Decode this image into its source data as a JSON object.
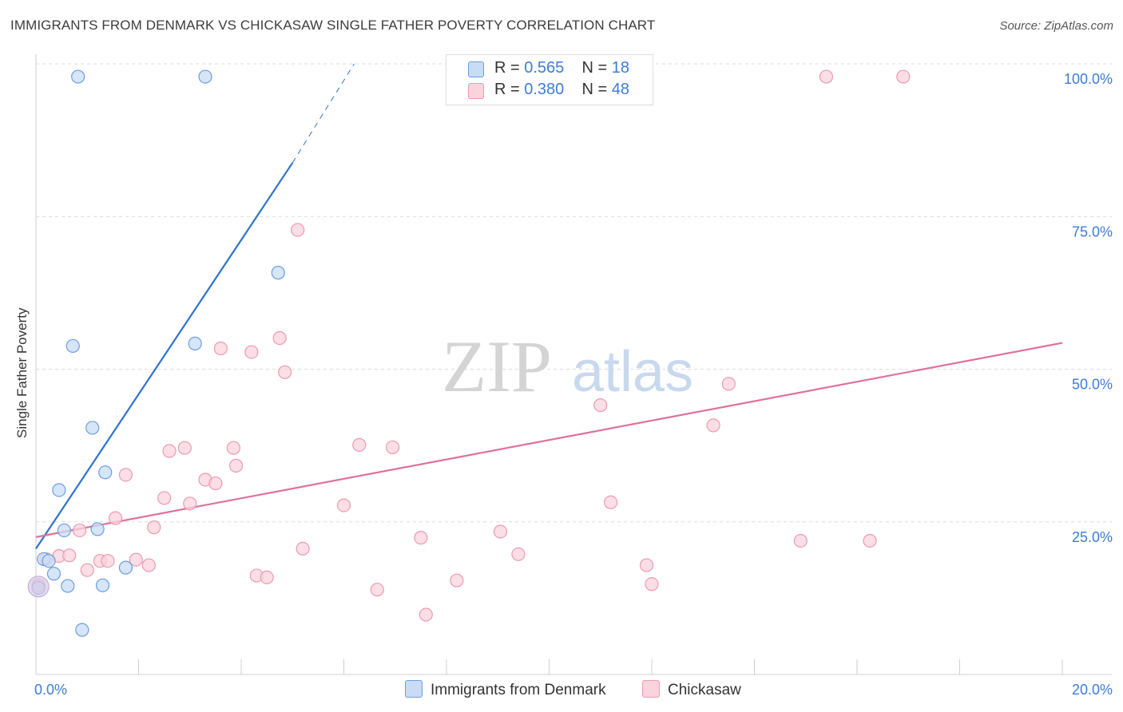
{
  "title": "IMMIGRANTS FROM DENMARK VS CHICKASAW SINGLE FATHER POVERTY CORRELATION CHART",
  "source": "Source: ZipAtlas.com",
  "watermark": {
    "zip": "ZIP",
    "atlas": "atlas"
  },
  "legend": {
    "items": [
      {
        "r_label": "R = ",
        "r_value": "0.565",
        "n_label": "N = ",
        "n_value": "18",
        "color": "#a9c8f0"
      },
      {
        "r_label": "R = ",
        "r_value": "0.380",
        "n_label": "N = ",
        "n_value": "48",
        "color": "#f6b8c9"
      }
    ]
  },
  "chart_data": {
    "type": "scatter",
    "xlabel": "",
    "ylabel": "Single Father Poverty",
    "xlim": [
      0,
      20
    ],
    "ylim": [
      0,
      100
    ],
    "x_tick_labels": [
      "0.0%",
      "20.0%"
    ],
    "y_tick_labels": [
      "25.0%",
      "50.0%",
      "75.0%",
      "100.0%"
    ],
    "y_ticks": [
      25,
      50,
      75,
      100
    ],
    "grid": true,
    "series": [
      {
        "name": "Immigrants from Denmark",
        "color": "#6a9ee0",
        "fill": "#c9dcf5",
        "line_color": "#2f72c9",
        "trend": {
          "x_start": 0.0,
          "y_start": 20.6,
          "x_end": 5.0,
          "y_end": 83.8,
          "dash_to_x": 6.2,
          "dash_to_y": 100.0
        },
        "points": [
          {
            "x": 0.82,
            "y": 97.9
          },
          {
            "x": 3.3,
            "y": 97.9
          },
          {
            "x": 4.72,
            "y": 65.8
          },
          {
            "x": 0.72,
            "y": 53.8
          },
          {
            "x": 3.1,
            "y": 54.2
          },
          {
            "x": 1.1,
            "y": 40.4
          },
          {
            "x": 1.35,
            "y": 33.1
          },
          {
            "x": 0.45,
            "y": 30.2
          },
          {
            "x": 0.55,
            "y": 23.6
          },
          {
            "x": 1.2,
            "y": 23.8
          },
          {
            "x": 0.15,
            "y": 18.9
          },
          {
            "x": 0.25,
            "y": 18.6
          },
          {
            "x": 0.35,
            "y": 16.5
          },
          {
            "x": 1.75,
            "y": 17.5
          },
          {
            "x": 0.62,
            "y": 14.5
          },
          {
            "x": 1.3,
            "y": 14.6
          },
          {
            "x": 0.9,
            "y": 7.3
          },
          {
            "x": 0.05,
            "y": 14.2
          }
        ]
      },
      {
        "name": "Chickasaw",
        "color": "#ec9ab1",
        "fill": "#fad3de",
        "line_color": "#e0709a",
        "trend": {
          "x_start": 0.0,
          "y_start": 22.5,
          "x_end": 20.0,
          "y_end": 54.3
        },
        "points": [
          {
            "x": 15.4,
            "y": 97.9
          },
          {
            "x": 16.9,
            "y": 97.9
          },
          {
            "x": 5.1,
            "y": 72.8
          },
          {
            "x": 4.75,
            "y": 55.1
          },
          {
            "x": 3.6,
            "y": 53.4
          },
          {
            "x": 4.2,
            "y": 52.8
          },
          {
            "x": 4.85,
            "y": 49.5
          },
          {
            "x": 13.5,
            "y": 47.6
          },
          {
            "x": 11.0,
            "y": 44.1
          },
          {
            "x": 13.2,
            "y": 40.8
          },
          {
            "x": 6.3,
            "y": 37.6
          },
          {
            "x": 6.95,
            "y": 37.2
          },
          {
            "x": 2.9,
            "y": 37.1
          },
          {
            "x": 2.6,
            "y": 36.6
          },
          {
            "x": 3.85,
            "y": 37.1
          },
          {
            "x": 3.9,
            "y": 34.2
          },
          {
            "x": 1.75,
            "y": 32.7
          },
          {
            "x": 3.3,
            "y": 31.9
          },
          {
            "x": 3.5,
            "y": 31.3
          },
          {
            "x": 2.5,
            "y": 28.9
          },
          {
            "x": 3.0,
            "y": 28.0
          },
          {
            "x": 6.0,
            "y": 27.7
          },
          {
            "x": 11.2,
            "y": 28.2
          },
          {
            "x": 1.55,
            "y": 25.6
          },
          {
            "x": 2.3,
            "y": 24.1
          },
          {
            "x": 0.85,
            "y": 23.6
          },
          {
            "x": 9.05,
            "y": 23.4
          },
          {
            "x": 7.5,
            "y": 22.4
          },
          {
            "x": 14.9,
            "y": 21.9
          },
          {
            "x": 16.25,
            "y": 21.9
          },
          {
            "x": 5.2,
            "y": 20.6
          },
          {
            "x": 9.4,
            "y": 19.7
          },
          {
            "x": 0.45,
            "y": 19.4
          },
          {
            "x": 0.65,
            "y": 19.5
          },
          {
            "x": 1.25,
            "y": 18.6
          },
          {
            "x": 1.4,
            "y": 18.6
          },
          {
            "x": 1.95,
            "y": 18.8
          },
          {
            "x": 2.2,
            "y": 17.9
          },
          {
            "x": 11.9,
            "y": 17.9
          },
          {
            "x": 1.0,
            "y": 17.1
          },
          {
            "x": 4.3,
            "y": 16.2
          },
          {
            "x": 4.5,
            "y": 15.9
          },
          {
            "x": 8.2,
            "y": 15.4
          },
          {
            "x": 12.0,
            "y": 14.8
          },
          {
            "x": 6.65,
            "y": 13.9
          },
          {
            "x": 0.2,
            "y": 18.9
          },
          {
            "x": 7.6,
            "y": 9.8
          },
          {
            "x": 0.05,
            "y": 14.6
          }
        ]
      }
    ]
  }
}
